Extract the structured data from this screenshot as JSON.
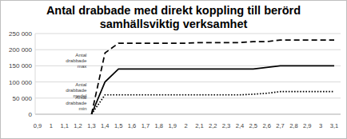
{
  "chart_data": {
    "type": "line",
    "title": "Antal drabbade med direkt koppling till berörd samhällsviktig verksamhet",
    "categories": [
      "0,9",
      "1",
      "1,1",
      "1,2",
      "1,3",
      "1,4",
      "1,5",
      "1,6",
      "1,7",
      "1,8",
      "1,9",
      "2",
      "2,1",
      "2,2",
      "2,3",
      "2,4",
      "2,5",
      "2,6",
      "2,7",
      "2,8",
      "2,9",
      "3",
      "3,1"
    ],
    "series": [
      {
        "name": "Antal drabbade max",
        "color": "#000000",
        "line_style": "dashed",
        "values": [
          null,
          null,
          null,
          null,
          0,
          190000,
          220000,
          220000,
          220000,
          220000,
          220000,
          220000,
          222000,
          222000,
          222000,
          222000,
          225000,
          225000,
          230000,
          230000,
          230000,
          230000,
          230000
        ]
      },
      {
        "name": "Antal drabbade medel",
        "color": "#000000",
        "line_style": "solid",
        "values": [
          null,
          null,
          null,
          null,
          0,
          100000,
          140000,
          140000,
          140000,
          140000,
          140000,
          140000,
          140000,
          140000,
          140000,
          140000,
          140000,
          145000,
          150000,
          150000,
          150000,
          150000,
          150000
        ]
      },
      {
        "name": "Antal drabbade min",
        "color": "#000000",
        "line_style": "dotted",
        "values": [
          null,
          null,
          null,
          null,
          0,
          60000,
          60000,
          60000,
          60000,
          60000,
          60000,
          60000,
          60000,
          60000,
          60000,
          60000,
          62000,
          65000,
          70000,
          70000,
          70000,
          70000,
          70000
        ]
      }
    ],
    "ylim": [
      0,
      250000
    ],
    "yticks": [
      0,
      {
        "value": 50000,
        "label": "50 000"
      },
      {
        "value": 100000,
        "label": "100 000"
      },
      {
        "value": 150000,
        "label": "150 000"
      },
      {
        "value": 200000,
        "label": "200 000"
      },
      {
        "value": 250000,
        "label": "250 000"
      }
    ],
    "grid": true
  }
}
